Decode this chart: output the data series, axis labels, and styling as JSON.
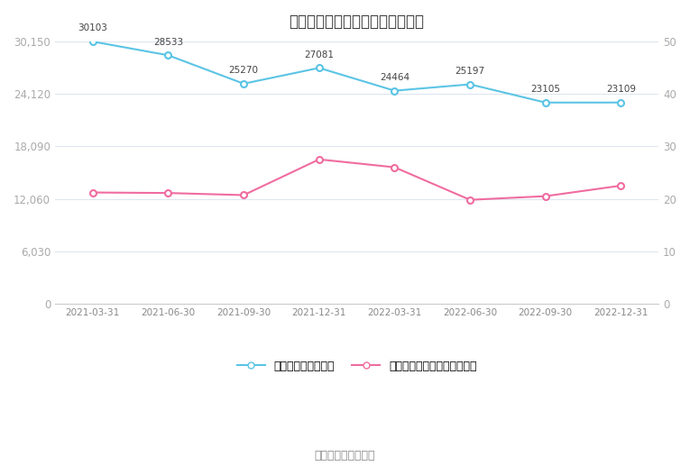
{
  "title": "近年股东户数、户均持股市值情况",
  "x_labels": [
    "2021-03-31",
    "2021-06-30",
    "2021-09-30",
    "2021-12-31",
    "2022-03-31",
    "2022-06-30",
    "2022-09-30",
    "2022-12-31"
  ],
  "left_values": [
    30103,
    28533,
    25270,
    27081,
    24464,
    25197,
    23105,
    23109
  ],
  "right_values": [
    21.2,
    21.1,
    20.7,
    27.5,
    26.0,
    19.8,
    20.5,
    22.5
  ],
  "left_color": "#5BC4E5",
  "right_color": "#F06CA0",
  "left_yticks": [
    0,
    6030,
    12060,
    18090,
    24120,
    30150
  ],
  "left_yticklabels": [
    "0",
    "6,030",
    "12,060",
    "18,090",
    "24,120",
    "30,150"
  ],
  "right_yticks": [
    0,
    10,
    20,
    30,
    40,
    50
  ],
  "right_yticklabels": [
    "0",
    "10",
    "20",
    "30",
    "40",
    "50"
  ],
  "left_ylim": [
    0,
    30150
  ],
  "right_ylim": [
    0,
    50
  ],
  "left_label": "左轴：本期数（户）",
  "right_label": "右轴：户均持股市值（万元）",
  "source_text": "数据来源：恒生聚源",
  "bg_color": "#ffffff",
  "grid_color": "#dde6f0",
  "title_fontsize": 12,
  "annotation_fontsize": 7.5
}
